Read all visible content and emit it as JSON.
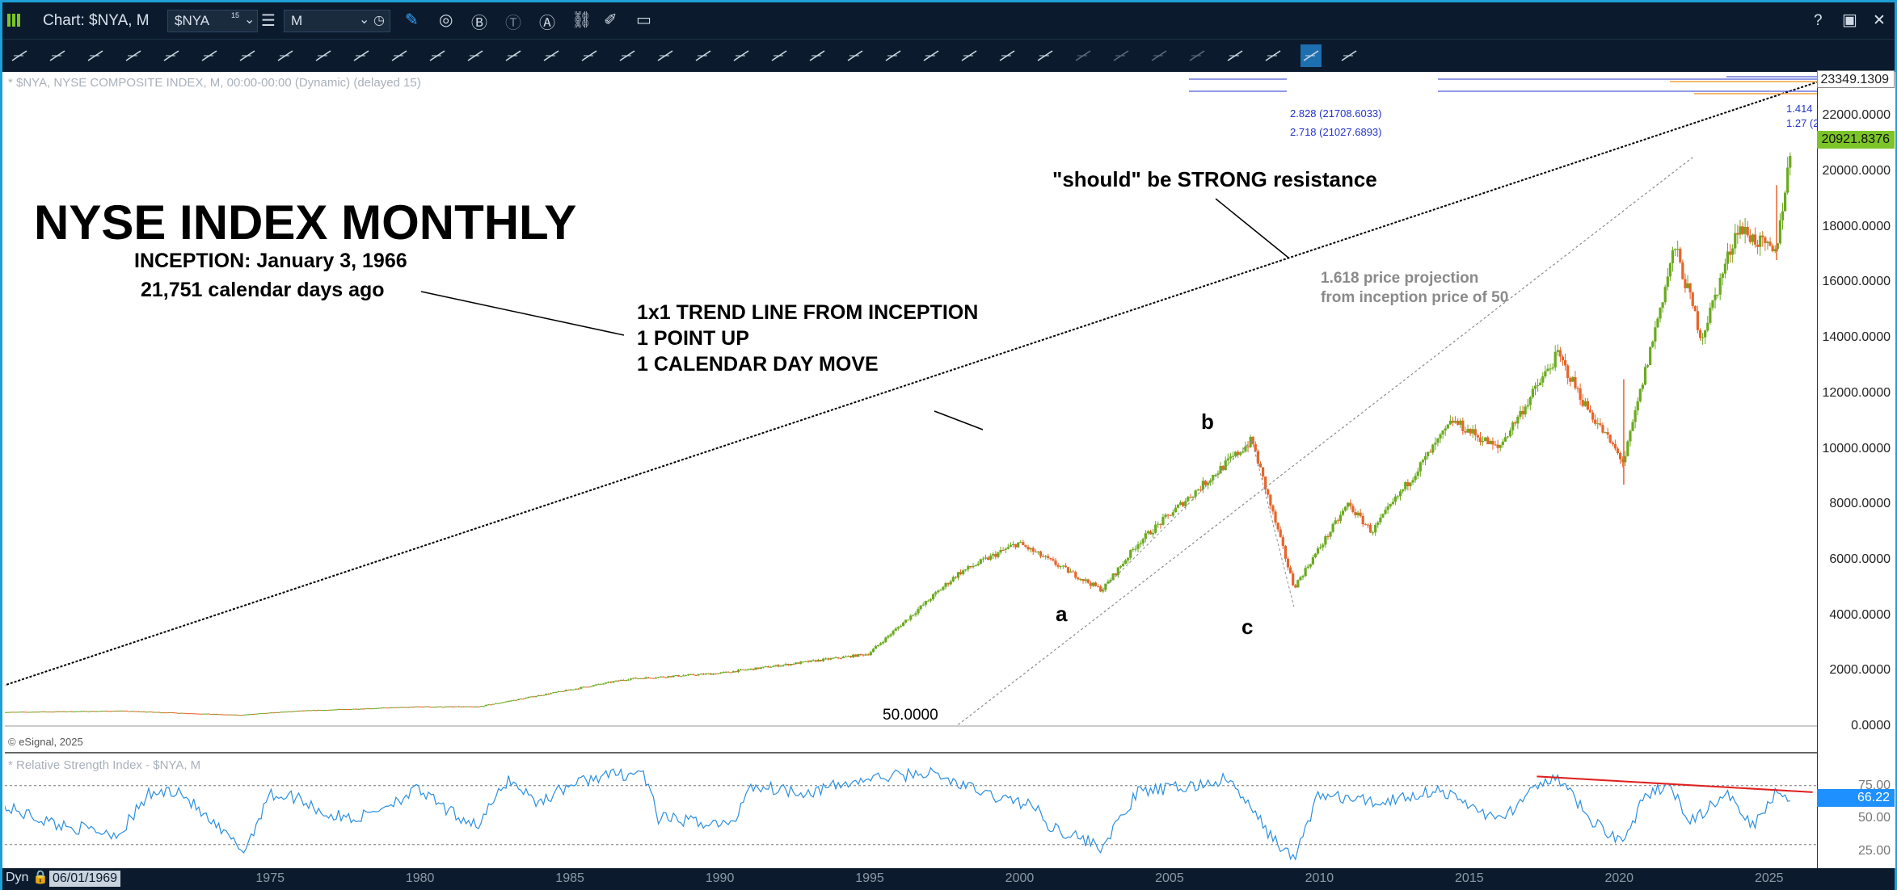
{
  "window": {
    "title": "Chart: $NYA, M",
    "symbol_value": "$NYA",
    "symbol_superscript": "15",
    "interval_value": "M",
    "help_icon": "?",
    "close_icon": "✕"
  },
  "chart_header": {
    "price_series_label": "* $NYA, NYSE COMPOSITE INDEX, M, 00:00-00:00 (Dynamic) (delayed 15)",
    "copyright": "© eSignal, 2025",
    "rsi_series_label": "* Relative Strength Index - $NYA, M"
  },
  "annotations": {
    "main_title": "NYSE INDEX MONTHLY",
    "inception": "INCEPTION: January 3, 1966",
    "days_ago": "21,751 calendar days ago",
    "trend_line_1": "1x1 TREND LINE FROM INCEPTION",
    "trend_line_2": "1 POINT UP",
    "trend_line_3": "1 CALENDAR DAY MOVE",
    "resistance": "\"should\" be STRONG resistance",
    "projection_1": "1.618 price projection",
    "projection_2": "from inception price of 50",
    "base_price": "50.0000",
    "wave_a": "a",
    "wave_b": "b",
    "wave_c": "c"
  },
  "fib_labels": {
    "f2828": "2.828 (21708.6033)",
    "f2718": "2.718 (21027.6893)",
    "f1414": "1.414",
    "f127": "1.27 (2"
  },
  "price_tags": {
    "top": "23349.1309",
    "last": "20921.8376",
    "rsi_last": "66.22"
  },
  "status": {
    "mode": "Dyn",
    "date": "06/01/1969"
  },
  "colors": {
    "up_candle": "#6aaa1e",
    "down_candle": "#e8642a",
    "rsi_line": "#2b8fe0",
    "rsi_divergence": "#e02020",
    "fib_lines": "#2233cc",
    "fib_orange": "#f2a040",
    "price_tag_bg": "#7cc428",
    "rsi_tag_bg": "#1e90ff",
    "frame": "#1d9fd8",
    "toolbar_bg": "#0b1b2d"
  },
  "chart_data": [
    {
      "type": "line",
      "title": "NYSE INDEX MONTHLY",
      "series": [
        {
          "name": "$NYA",
          "x": [
            1966,
            1970,
            1974,
            1976,
            1980,
            1982,
            1987,
            1990,
            1995,
            1998,
            2000,
            2002.8,
            2004,
            2007.8,
            2009.2,
            2011,
            2011.8,
            2014.5,
            2016,
            2018,
            2018.9,
            2020.2,
            2021.9,
            2022.8,
            2024,
            2025.25,
            2025.8
          ],
          "values": [
            500,
            550,
            400,
            550,
            700,
            700,
            1700,
            1900,
            2600,
            5500,
            6600,
            4900,
            6600,
            10300,
            5000,
            8000,
            7000,
            11000,
            10000,
            13400,
            11600,
            9500,
            17300,
            14000,
            18000,
            17000,
            20922
          ]
        },
        {
          "name": "1x1 trend line",
          "x": [
            1966,
            2025.5
          ],
          "values": [
            1400,
            22800
          ]
        },
        {
          "name": "1.618 projection",
          "x": [
            1998,
            2022.5
          ],
          "values": [
            50,
            20500
          ]
        }
      ],
      "xlim": [
        1966.2,
        2026.7
      ],
      "ylim": [
        -800,
        23300
      ],
      "xticks": [
        "1975",
        "1980",
        "1985",
        "1990",
        "1995",
        "2000",
        "2005",
        "2010",
        "2015",
        "2020",
        "2025"
      ],
      "xtick_values": [
        1975,
        1980,
        1985,
        1990,
        1995,
        2000,
        2005,
        2010,
        2015,
        2020,
        2025
      ],
      "yticks": [
        "0.0000",
        "2000.0000",
        "4000.0000",
        "6000.0000",
        "8000.0000",
        "10000.0000",
        "12000.0000",
        "14000.0000",
        "16000.0000",
        "18000.0000",
        "20000.0000",
        "22000.0000"
      ],
      "ytick_values": [
        0,
        2000,
        4000,
        6000,
        8000,
        10000,
        12000,
        14000,
        16000,
        18000,
        20000,
        22000
      ],
      "fib_levels": [
        {
          "label": "2.828",
          "value": 21708.6033
        },
        {
          "label": "2.718",
          "value": 21027.6893
        },
        {
          "label": "1.414",
          "value": 22050
        },
        {
          "label": "1.27",
          "value": 21550
        }
      ]
    },
    {
      "type": "line",
      "title": "Relative Strength Index - $NYA, M",
      "series": [
        {
          "name": "RSI",
          "x": [
            1966,
            1968,
            1970,
            1971,
            1972,
            1973,
            1974.2,
            1975,
            1976,
            1977,
            1978,
            1980,
            1981,
            1982,
            1983,
            1984,
            1985,
            1986,
            1987.5,
            1988,
            1990.5,
            1991,
            1993,
            1995,
            1997,
            1999,
            2000.5,
            2001,
            2002.8,
            2004,
            2006,
            2007,
            2008.5,
            2009.2,
            2010,
            2012,
            2014,
            2015.5,
            2016,
            2017.8,
            2018.5,
            2019,
            2020.2,
            2020.8,
            2021.6,
            2022.5,
            2023,
            2023.8,
            2024.5,
            2025.3,
            2025.8
          ],
          "values": [
            60,
            45,
            38,
            68,
            72,
            48,
            25,
            68,
            66,
            52,
            50,
            72,
            55,
            45,
            80,
            62,
            75,
            82,
            85,
            50,
            45,
            75,
            70,
            80,
            85,
            68,
            60,
            45,
            28,
            70,
            75,
            80,
            35,
            18,
            68,
            62,
            72,
            55,
            48,
            82,
            68,
            50,
            32,
            62,
            76,
            48,
            58,
            68,
            45,
            70,
            66.22
          ]
        },
        {
          "name": "Divergence",
          "x": [
            2017.3,
            2026.5
          ],
          "values": [
            82,
            70
          ]
        }
      ],
      "xlim": [
        1966.2,
        2026.7
      ],
      "ylim": [
        12,
        97
      ],
      "yticks": [
        "75.00",
        "50.00",
        "25.00"
      ],
      "ytick_values": [
        75,
        50,
        25
      ]
    }
  ]
}
